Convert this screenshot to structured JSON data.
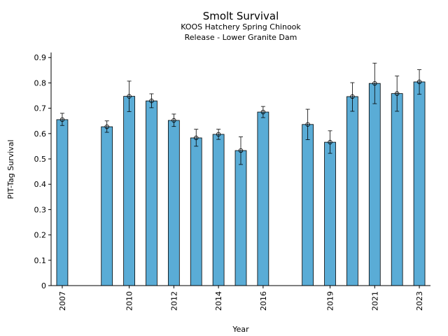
{
  "chart_data": {
    "type": "bar",
    "title": "Smolt Survival",
    "subtitle_lines": [
      "KOOS Hatchery Spring Chinook",
      "Release - Lower Granite Dam"
    ],
    "xlabel": "Year",
    "ylabel": "PIT-Tag Survival",
    "ylim": [
      0,
      0.92
    ],
    "xlim": [
      2006.5,
      2023.5
    ],
    "y_ticks": [
      "0",
      "0.1",
      "0.2",
      "0.3",
      "0.4",
      "0.5",
      "0.6",
      "0.7",
      "0.8",
      "0.9"
    ],
    "x_ticks": [
      "2007",
      "2010",
      "2012",
      "2014",
      "2016",
      "2019",
      "2021",
      "2023"
    ],
    "grid": false,
    "bar_color": "#5aacd6",
    "series": [
      {
        "x": [
          2007,
          2009,
          2010,
          2011,
          2012,
          2013,
          2014,
          2015,
          2016,
          2018,
          2019,
          2020,
          2021,
          2022,
          2023
        ],
        "values": [
          0.655,
          0.627,
          0.747,
          0.729,
          0.652,
          0.583,
          0.597,
          0.533,
          0.685,
          0.636,
          0.566,
          0.746,
          0.798,
          0.758,
          0.804
        ],
        "err_low": [
          0.632,
          0.605,
          0.687,
          0.702,
          0.628,
          0.55,
          0.577,
          0.478,
          0.663,
          0.576,
          0.522,
          0.688,
          0.718,
          0.688,
          0.755
        ],
        "err_high": [
          0.68,
          0.65,
          0.807,
          0.757,
          0.677,
          0.617,
          0.617,
          0.587,
          0.707,
          0.696,
          0.611,
          0.801,
          0.878,
          0.827,
          0.852
        ]
      }
    ]
  }
}
